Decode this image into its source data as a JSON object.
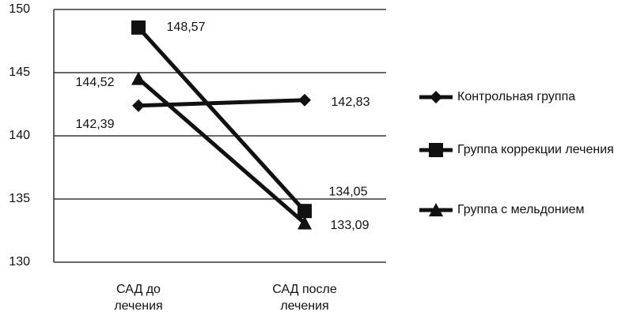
{
  "chart_data": {
    "type": "line",
    "categories": [
      "САД до лечения",
      "САД после лечения"
    ],
    "series": [
      {
        "name": "Контрольная группа",
        "color": "#111111",
        "marker": "diamond",
        "values": [
          142.39,
          142.83
        ],
        "value_labels": [
          "142,39",
          "142,83"
        ]
      },
      {
        "name": "Группа коррекции лечения",
        "color": "#111111",
        "marker": "square",
        "values": [
          148.57,
          134.05
        ],
        "value_labels": [
          "148,57",
          "134,05"
        ]
      },
      {
        "name": "Группа с мельдонием",
        "color": "#111111",
        "marker": "triangle",
        "values": [
          144.52,
          133.09
        ],
        "value_labels": [
          "144,52",
          "133,09"
        ]
      }
    ],
    "ylim": [
      130,
      150
    ],
    "yticks": [
      130,
      135,
      140,
      145,
      150
    ],
    "grid": true,
    "legend": "right"
  }
}
